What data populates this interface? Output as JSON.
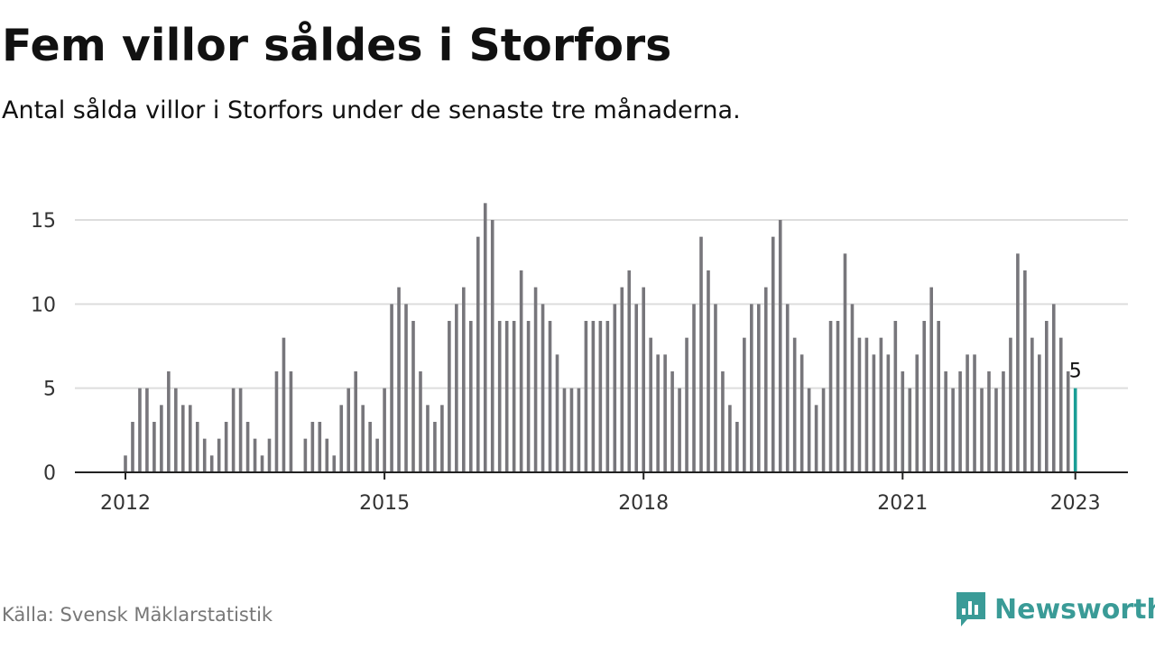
{
  "title": "Fem villor såldes i Storfors",
  "subtitle": "Antal sålda villor i Storfors under de senaste tre månaderna.",
  "source": "Källa: Svensk Mäklarstatistik",
  "brand": {
    "name": "Newsworthy",
    "icon": "newsworthy-logo-icon",
    "color": "#3a9b97"
  },
  "colors": {
    "bar": "#77767b",
    "highlight": "#1a9e96",
    "grid": "#dddddd",
    "axis": "#222222"
  },
  "chart_data": {
    "type": "bar",
    "xlabel": "",
    "ylabel": "",
    "ylim": [
      0,
      16
    ],
    "yticks": [
      0,
      5,
      10,
      15
    ],
    "xticks": [
      "2012",
      "2015",
      "2018",
      "2021",
      "2023"
    ],
    "x_start": "2012-01",
    "x": [
      "2012-01",
      "2012-02",
      "2012-03",
      "2012-04",
      "2012-05",
      "2012-06",
      "2012-07",
      "2012-08",
      "2012-09",
      "2012-10",
      "2012-11",
      "2012-12",
      "2013-01",
      "2013-02",
      "2013-03",
      "2013-04",
      "2013-05",
      "2013-06",
      "2013-07",
      "2013-08",
      "2013-09",
      "2013-10",
      "2013-11",
      "2013-12",
      "2014-01",
      "2014-02",
      "2014-03",
      "2014-04",
      "2014-05",
      "2014-06",
      "2014-07",
      "2014-08",
      "2014-09",
      "2014-10",
      "2014-11",
      "2014-12",
      "2015-01",
      "2015-02",
      "2015-03",
      "2015-04",
      "2015-05",
      "2015-06",
      "2015-07",
      "2015-08",
      "2015-09",
      "2015-10",
      "2015-11",
      "2015-12",
      "2016-01",
      "2016-02",
      "2016-03",
      "2016-04",
      "2016-05",
      "2016-06",
      "2016-07",
      "2016-08",
      "2016-09",
      "2016-10",
      "2016-11",
      "2016-12",
      "2017-01",
      "2017-02",
      "2017-03",
      "2017-04",
      "2017-05",
      "2017-06",
      "2017-07",
      "2017-08",
      "2017-09",
      "2017-10",
      "2017-11",
      "2017-12",
      "2018-01",
      "2018-02",
      "2018-03",
      "2018-04",
      "2018-05",
      "2018-06",
      "2018-07",
      "2018-08",
      "2018-09",
      "2018-10",
      "2018-11",
      "2018-12",
      "2019-01",
      "2019-02",
      "2019-03",
      "2019-04",
      "2019-05",
      "2019-06",
      "2019-07",
      "2019-08",
      "2019-09",
      "2019-10",
      "2019-11",
      "2019-12",
      "2020-01",
      "2020-02",
      "2020-03",
      "2020-04",
      "2020-05",
      "2020-06",
      "2020-07",
      "2020-08",
      "2020-09",
      "2020-10",
      "2020-11",
      "2020-12",
      "2021-01",
      "2021-02",
      "2021-03",
      "2021-04",
      "2021-05",
      "2021-06",
      "2021-07",
      "2021-08",
      "2021-09",
      "2021-10",
      "2021-11",
      "2021-12",
      "2022-01",
      "2022-02",
      "2022-03",
      "2022-04",
      "2022-05",
      "2022-06",
      "2022-07",
      "2022-08",
      "2022-09",
      "2022-10",
      "2022-11",
      "2022-12",
      "2023-01"
    ],
    "values": [
      1,
      3,
      5,
      5,
      3,
      4,
      6,
      5,
      4,
      4,
      3,
      2,
      1,
      2,
      3,
      5,
      5,
      3,
      2,
      1,
      2,
      6,
      8,
      6,
      null,
      2,
      3,
      3,
      2,
      1,
      4,
      5,
      6,
      4,
      3,
      2,
      5,
      10,
      11,
      10,
      9,
      6,
      4,
      3,
      4,
      9,
      10,
      11,
      9,
      14,
      16,
      15,
      9,
      9,
      9,
      12,
      9,
      11,
      10,
      9,
      7,
      5,
      5,
      5,
      9,
      9,
      9,
      9,
      10,
      11,
      12,
      10,
      11,
      8,
      7,
      7,
      6,
      5,
      8,
      10,
      14,
      12,
      10,
      6,
      4,
      3,
      8,
      10,
      10,
      11,
      14,
      15,
      10,
      8,
      7,
      5,
      4,
      5,
      9,
      9,
      13,
      10,
      8,
      8,
      7,
      8,
      7,
      9,
      6,
      5,
      7,
      9,
      11,
      9,
      6,
      5,
      6,
      7,
      7,
      5,
      6,
      5,
      6,
      8,
      13,
      12,
      8,
      7,
      9,
      10,
      8,
      6,
      5
    ],
    "highlight_index": 132,
    "highlight_label": "5"
  }
}
